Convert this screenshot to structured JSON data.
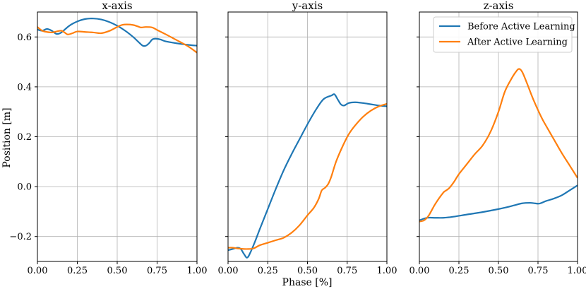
{
  "chart_data": {
    "type": "line",
    "shared_ylabel": "Position [m]",
    "shared_xlabel": "Phase [%]",
    "ylim": [
      -0.3,
      0.7
    ],
    "yticks": [
      -0.2,
      0.0,
      0.2,
      0.4,
      0.6
    ],
    "ytick_labels": [
      "−0.2",
      "0.0",
      "0.2",
      "0.4",
      "0.6"
    ],
    "xlim": [
      0,
      1
    ],
    "xticks": [
      0.0,
      0.25,
      0.5,
      0.75,
      1.0
    ],
    "xtick_labels": [
      "0.00",
      "0.25",
      "0.50",
      "0.75",
      "1.00"
    ],
    "grid": true,
    "legend": {
      "placement": "top-right of z-axis panel",
      "entries": [
        "Before Active Learning",
        "After Active Learning"
      ]
    },
    "colors": {
      "before": "#1f77b4",
      "after": "#ff7f0e"
    },
    "panels": [
      {
        "title": "x-axis",
        "series": [
          {
            "name": "Before Active Learning",
            "color": "#1f77b4",
            "x": [
              0,
              0.03,
              0.06,
              0.09,
              0.12,
              0.15,
              0.2,
              0.25,
              0.3,
              0.35,
              0.4,
              0.45,
              0.5,
              0.55,
              0.6,
              0.63,
              0.66,
              0.68,
              0.7,
              0.72,
              0.74,
              0.77,
              0.8,
              0.85,
              0.9,
              0.95,
              1.0
            ],
            "y": [
              0.63,
              0.625,
              0.632,
              0.625,
              0.612,
              0.618,
              0.645,
              0.662,
              0.672,
              0.674,
              0.67,
              0.66,
              0.645,
              0.625,
              0.6,
              0.582,
              0.565,
              0.565,
              0.575,
              0.59,
              0.593,
              0.59,
              0.583,
              0.577,
              0.572,
              0.568,
              0.565
            ]
          },
          {
            "name": "After Active Learning",
            "color": "#ff7f0e",
            "x": [
              0,
              0.03,
              0.06,
              0.09,
              0.12,
              0.15,
              0.17,
              0.19,
              0.22,
              0.25,
              0.3,
              0.35,
              0.4,
              0.45,
              0.5,
              0.53,
              0.56,
              0.6,
              0.63,
              0.65,
              0.68,
              0.72,
              0.75,
              0.8,
              0.85,
              0.9,
              0.95,
              1.0
            ],
            "y": [
              0.64,
              0.625,
              0.62,
              0.618,
              0.622,
              0.625,
              0.618,
              0.61,
              0.615,
              0.622,
              0.62,
              0.618,
              0.615,
              0.624,
              0.64,
              0.648,
              0.65,
              0.648,
              0.642,
              0.638,
              0.64,
              0.638,
              0.628,
              0.612,
              0.595,
              0.578,
              0.56,
              0.537
            ]
          }
        ]
      },
      {
        "title": "y-axis",
        "series": [
          {
            "name": "Before Active Learning",
            "color": "#1f77b4",
            "x": [
              0,
              0.03,
              0.06,
              0.08,
              0.1,
              0.12,
              0.14,
              0.17,
              0.2,
              0.25,
              0.3,
              0.35,
              0.4,
              0.45,
              0.5,
              0.55,
              0.6,
              0.65,
              0.67,
              0.69,
              0.71,
              0.73,
              0.76,
              0.8,
              0.85,
              0.9,
              0.95,
              1.0
            ],
            "y": [
              -0.255,
              -0.25,
              -0.245,
              -0.25,
              -0.27,
              -0.285,
              -0.265,
              -0.22,
              -0.17,
              -0.09,
              -0.01,
              0.065,
              0.13,
              0.19,
              0.25,
              0.305,
              0.35,
              0.365,
              0.37,
              0.35,
              0.33,
              0.325,
              0.335,
              0.338,
              0.335,
              0.33,
              0.325,
              0.322
            ]
          },
          {
            "name": "After Active Learning",
            "color": "#ff7f0e",
            "x": [
              0,
              0.03,
              0.06,
              0.1,
              0.13,
              0.16,
              0.2,
              0.25,
              0.3,
              0.35,
              0.4,
              0.45,
              0.5,
              0.54,
              0.57,
              0.59,
              0.61,
              0.63,
              0.65,
              0.68,
              0.72,
              0.76,
              0.8,
              0.85,
              0.9,
              0.95,
              1.0
            ],
            "y": [
              -0.245,
              -0.245,
              -0.248,
              -0.25,
              -0.25,
              -0.248,
              -0.235,
              -0.225,
              -0.215,
              -0.205,
              -0.185,
              -0.155,
              -0.115,
              -0.085,
              -0.05,
              -0.015,
              -0.005,
              0.01,
              0.04,
              0.1,
              0.16,
              0.21,
              0.245,
              0.28,
              0.305,
              0.322,
              0.332
            ]
          }
        ]
      },
      {
        "title": "z-axis",
        "series": [
          {
            "name": "Before Active Learning",
            "color": "#1f77b4",
            "x": [
              0,
              0.05,
              0.1,
              0.15,
              0.2,
              0.3,
              0.4,
              0.5,
              0.55,
              0.6,
              0.65,
              0.7,
              0.73,
              0.76,
              0.8,
              0.85,
              0.9,
              0.95,
              1.0
            ],
            "y": [
              -0.135,
              -0.125,
              -0.125,
              -0.125,
              -0.122,
              -0.112,
              -0.102,
              -0.09,
              -0.083,
              -0.075,
              -0.067,
              -0.065,
              -0.067,
              -0.068,
              -0.058,
              -0.048,
              -0.035,
              -0.015,
              0.005
            ]
          },
          {
            "name": "After Active Learning",
            "color": "#ff7f0e",
            "x": [
              0,
              0.03,
              0.06,
              0.1,
              0.15,
              0.17,
              0.19,
              0.22,
              0.25,
              0.3,
              0.35,
              0.4,
              0.45,
              0.5,
              0.54,
              0.58,
              0.61,
              0.63,
              0.65,
              0.68,
              0.72,
              0.77,
              0.8,
              0.85,
              0.9,
              0.95,
              1.0
            ],
            "y": [
              -0.14,
              -0.135,
              -0.115,
              -0.07,
              -0.025,
              -0.015,
              -0.005,
              0.02,
              0.05,
              0.09,
              0.13,
              0.165,
              0.22,
              0.3,
              0.38,
              0.43,
              0.46,
              0.472,
              0.46,
              0.415,
              0.35,
              0.28,
              0.245,
              0.19,
              0.135,
              0.085,
              0.035
            ]
          }
        ]
      }
    ]
  }
}
